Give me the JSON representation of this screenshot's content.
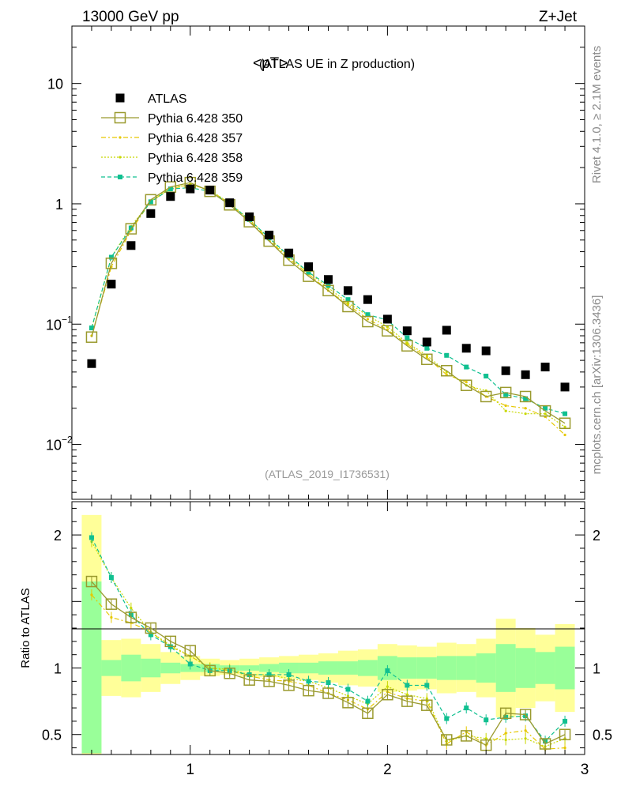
{
  "header": {
    "left": "13000 GeV pp",
    "right": "Z+Jet"
  },
  "side": {
    "rivet": "Rivet 4.1.0, ≥ 2.1M events",
    "mcplots": "mcplots.cern.ch [arXiv:1306.3436]"
  },
  "colors": {
    "data": "#000000",
    "p350": "#9a9a2e",
    "p357": "#e6c800",
    "p358": "#c8d800",
    "p359": "#10c090",
    "band_outer": "#ffff99",
    "band_inner": "#99ff99"
  },
  "chart_data": {
    "type": "scatter",
    "title_main": "<pT>",
    "title_sub": "(ATLAS UE in Z production)",
    "analysis": "(ATLAS_2019_I1736531)",
    "xlim": [
      0.4,
      3.0
    ],
    "ylim_log": [
      0.0035,
      30
    ],
    "yscale": "log",
    "y_ticks": [
      {
        "value": 10,
        "label": "10"
      },
      {
        "value": 1,
        "label": "1"
      },
      {
        "value": 0.1,
        "label": "10",
        "exp": "−1"
      },
      {
        "value": 0.01,
        "label": "10",
        "exp": "−2"
      }
    ],
    "x_ticks": [
      {
        "value": 1,
        "label": "1"
      },
      {
        "value": 2,
        "label": "2"
      },
      {
        "value": 3,
        "label": "3"
      }
    ],
    "x": [
      0.5,
      0.6,
      0.7,
      0.8,
      0.9,
      1.0,
      1.1,
      1.2,
      1.3,
      1.4,
      1.5,
      1.6,
      1.7,
      1.8,
      1.9,
      2.0,
      2.1,
      2.2,
      2.3,
      2.4,
      2.5,
      2.6,
      2.7,
      2.8,
      2.9
    ],
    "legend": [
      "ATLAS",
      "Pythia 6.428 350",
      "Pythia 6.428 357",
      "Pythia 6.428 358",
      "Pythia 6.428 359"
    ],
    "series": [
      {
        "key": "data",
        "name": "ATLAS",
        "values": [
          0.047,
          0.215,
          0.45,
          0.83,
          1.15,
          1.33,
          1.3,
          1.02,
          0.78,
          0.55,
          0.39,
          0.3,
          0.235,
          0.19,
          0.16,
          0.11,
          0.088,
          0.071,
          0.089,
          0.063,
          0.06,
          0.041,
          0.038,
          0.044,
          0.03
        ]
      },
      {
        "key": "p350",
        "name": "Pythia 6.428 350",
        "values": [
          0.078,
          0.32,
          0.62,
          1.08,
          1.38,
          1.5,
          1.27,
          0.98,
          0.71,
          0.49,
          0.34,
          0.25,
          0.19,
          0.14,
          0.105,
          0.088,
          0.066,
          0.051,
          0.041,
          0.031,
          0.025,
          0.027,
          0.025,
          0.019,
          0.015
        ]
      },
      {
        "key": "p357",
        "name": "Pythia 6.428 357",
        "values": [
          0.08,
          0.3,
          0.6,
          1.05,
          1.33,
          1.45,
          1.3,
          1.0,
          0.73,
          0.5,
          0.35,
          0.26,
          0.19,
          0.145,
          0.11,
          0.09,
          0.068,
          0.053,
          0.038,
          0.033,
          0.025,
          0.021,
          0.02,
          0.017,
          0.012
        ]
      },
      {
        "key": "p358",
        "name": "Pythia 6.428 358",
        "values": [
          0.092,
          0.36,
          0.65,
          1.05,
          1.35,
          1.45,
          1.3,
          1.01,
          0.74,
          0.52,
          0.36,
          0.27,
          0.2,
          0.15,
          0.118,
          0.095,
          0.07,
          0.055,
          0.04,
          0.031,
          0.028,
          0.019,
          0.018,
          0.018,
          0.014
        ]
      },
      {
        "key": "p359",
        "name": "Pythia 6.428 359",
        "values": [
          0.093,
          0.36,
          0.63,
          1.04,
          1.33,
          1.36,
          1.27,
          1.0,
          0.74,
          0.52,
          0.37,
          0.27,
          0.21,
          0.16,
          0.12,
          0.108,
          0.077,
          0.063,
          0.055,
          0.044,
          0.037,
          0.026,
          0.024,
          0.02,
          0.018
        ]
      }
    ],
    "ratio": {
      "ylabel": "Ratio to ATLAS",
      "ylim": [
        0.35,
        2.25
      ],
      "y_ticks": [
        {
          "value": 2,
          "label": "2"
        },
        {
          "value": 1,
          "label": "1"
        },
        {
          "value": 0.5,
          "label": "0.5"
        }
      ],
      "band_outer": [
        [
          0.35,
          2.15
        ],
        [
          0.79,
          1.21
        ],
        [
          0.78,
          1.22
        ],
        [
          0.82,
          1.18
        ],
        [
          0.88,
          1.12
        ],
        [
          0.91,
          1.09
        ],
        [
          0.94,
          1.07
        ],
        [
          0.95,
          1.06
        ],
        [
          0.93,
          1.07
        ],
        [
          0.93,
          1.08
        ],
        [
          0.92,
          1.09
        ],
        [
          0.91,
          1.1
        ],
        [
          0.89,
          1.11
        ],
        [
          0.87,
          1.13
        ],
        [
          0.86,
          1.14
        ],
        [
          0.82,
          1.18
        ],
        [
          0.83,
          1.17
        ],
        [
          0.84,
          1.16
        ],
        [
          0.81,
          1.19
        ],
        [
          0.82,
          1.18
        ],
        [
          0.78,
          1.22
        ],
        [
          0.63,
          1.37
        ],
        [
          0.7,
          1.3
        ],
        [
          0.75,
          1.25
        ],
        [
          0.67,
          1.33
        ]
      ],
      "band_inner": [
        [
          0.36,
          1.65
        ],
        [
          0.94,
          1.06
        ],
        [
          0.9,
          1.1
        ],
        [
          0.93,
          1.07
        ],
        [
          0.96,
          1.04
        ],
        [
          0.97,
          1.03
        ],
        [
          0.97,
          1.03
        ],
        [
          0.98,
          1.02
        ],
        [
          0.98,
          1.02
        ],
        [
          0.97,
          1.03
        ],
        [
          0.96,
          1.04
        ],
        [
          0.96,
          1.04
        ],
        [
          0.95,
          1.05
        ],
        [
          0.95,
          1.05
        ],
        [
          0.94,
          1.06
        ],
        [
          0.91,
          1.09
        ],
        [
          0.92,
          1.08
        ],
        [
          0.92,
          1.08
        ],
        [
          0.91,
          1.09
        ],
        [
          0.91,
          1.09
        ],
        [
          0.89,
          1.11
        ],
        [
          0.82,
          1.18
        ],
        [
          0.85,
          1.15
        ],
        [
          0.88,
          1.12
        ],
        [
          0.84,
          1.16
        ]
      ],
      "series": [
        {
          "key": "p350",
          "values": [
            1.65,
            1.48,
            1.38,
            1.3,
            1.2,
            1.13,
            0.98,
            0.96,
            0.91,
            0.9,
            0.87,
            0.83,
            0.81,
            0.74,
            0.66,
            0.8,
            0.75,
            0.72,
            0.46,
            0.49,
            0.42,
            0.66,
            0.65,
            0.43,
            0.5
          ]
        },
        {
          "key": "p357",
          "values": [
            1.55,
            1.38,
            1.34,
            1.27,
            1.16,
            1.09,
            1.0,
            0.98,
            0.94,
            0.91,
            0.9,
            0.87,
            0.81,
            0.76,
            0.69,
            0.82,
            0.77,
            0.75,
            0.43,
            0.52,
            0.42,
            0.51,
            0.53,
            0.39,
            0.4
          ]
        },
        {
          "key": "p358",
          "values": [
            1.95,
            1.68,
            1.45,
            1.27,
            1.17,
            1.09,
            1.0,
            0.99,
            0.95,
            0.95,
            0.92,
            0.9,
            0.85,
            0.79,
            0.73,
            0.86,
            0.8,
            0.77,
            0.45,
            0.49,
            0.47,
            0.46,
            0.47,
            0.41,
            0.47
          ]
        },
        {
          "key": "p359",
          "values": [
            1.98,
            1.68,
            1.4,
            1.25,
            1.16,
            1.03,
            0.98,
            0.98,
            0.95,
            0.95,
            0.95,
            0.9,
            0.89,
            0.84,
            0.75,
            0.98,
            0.87,
            0.87,
            0.62,
            0.7,
            0.61,
            0.63,
            0.64,
            0.45,
            0.6
          ]
        }
      ]
    }
  }
}
